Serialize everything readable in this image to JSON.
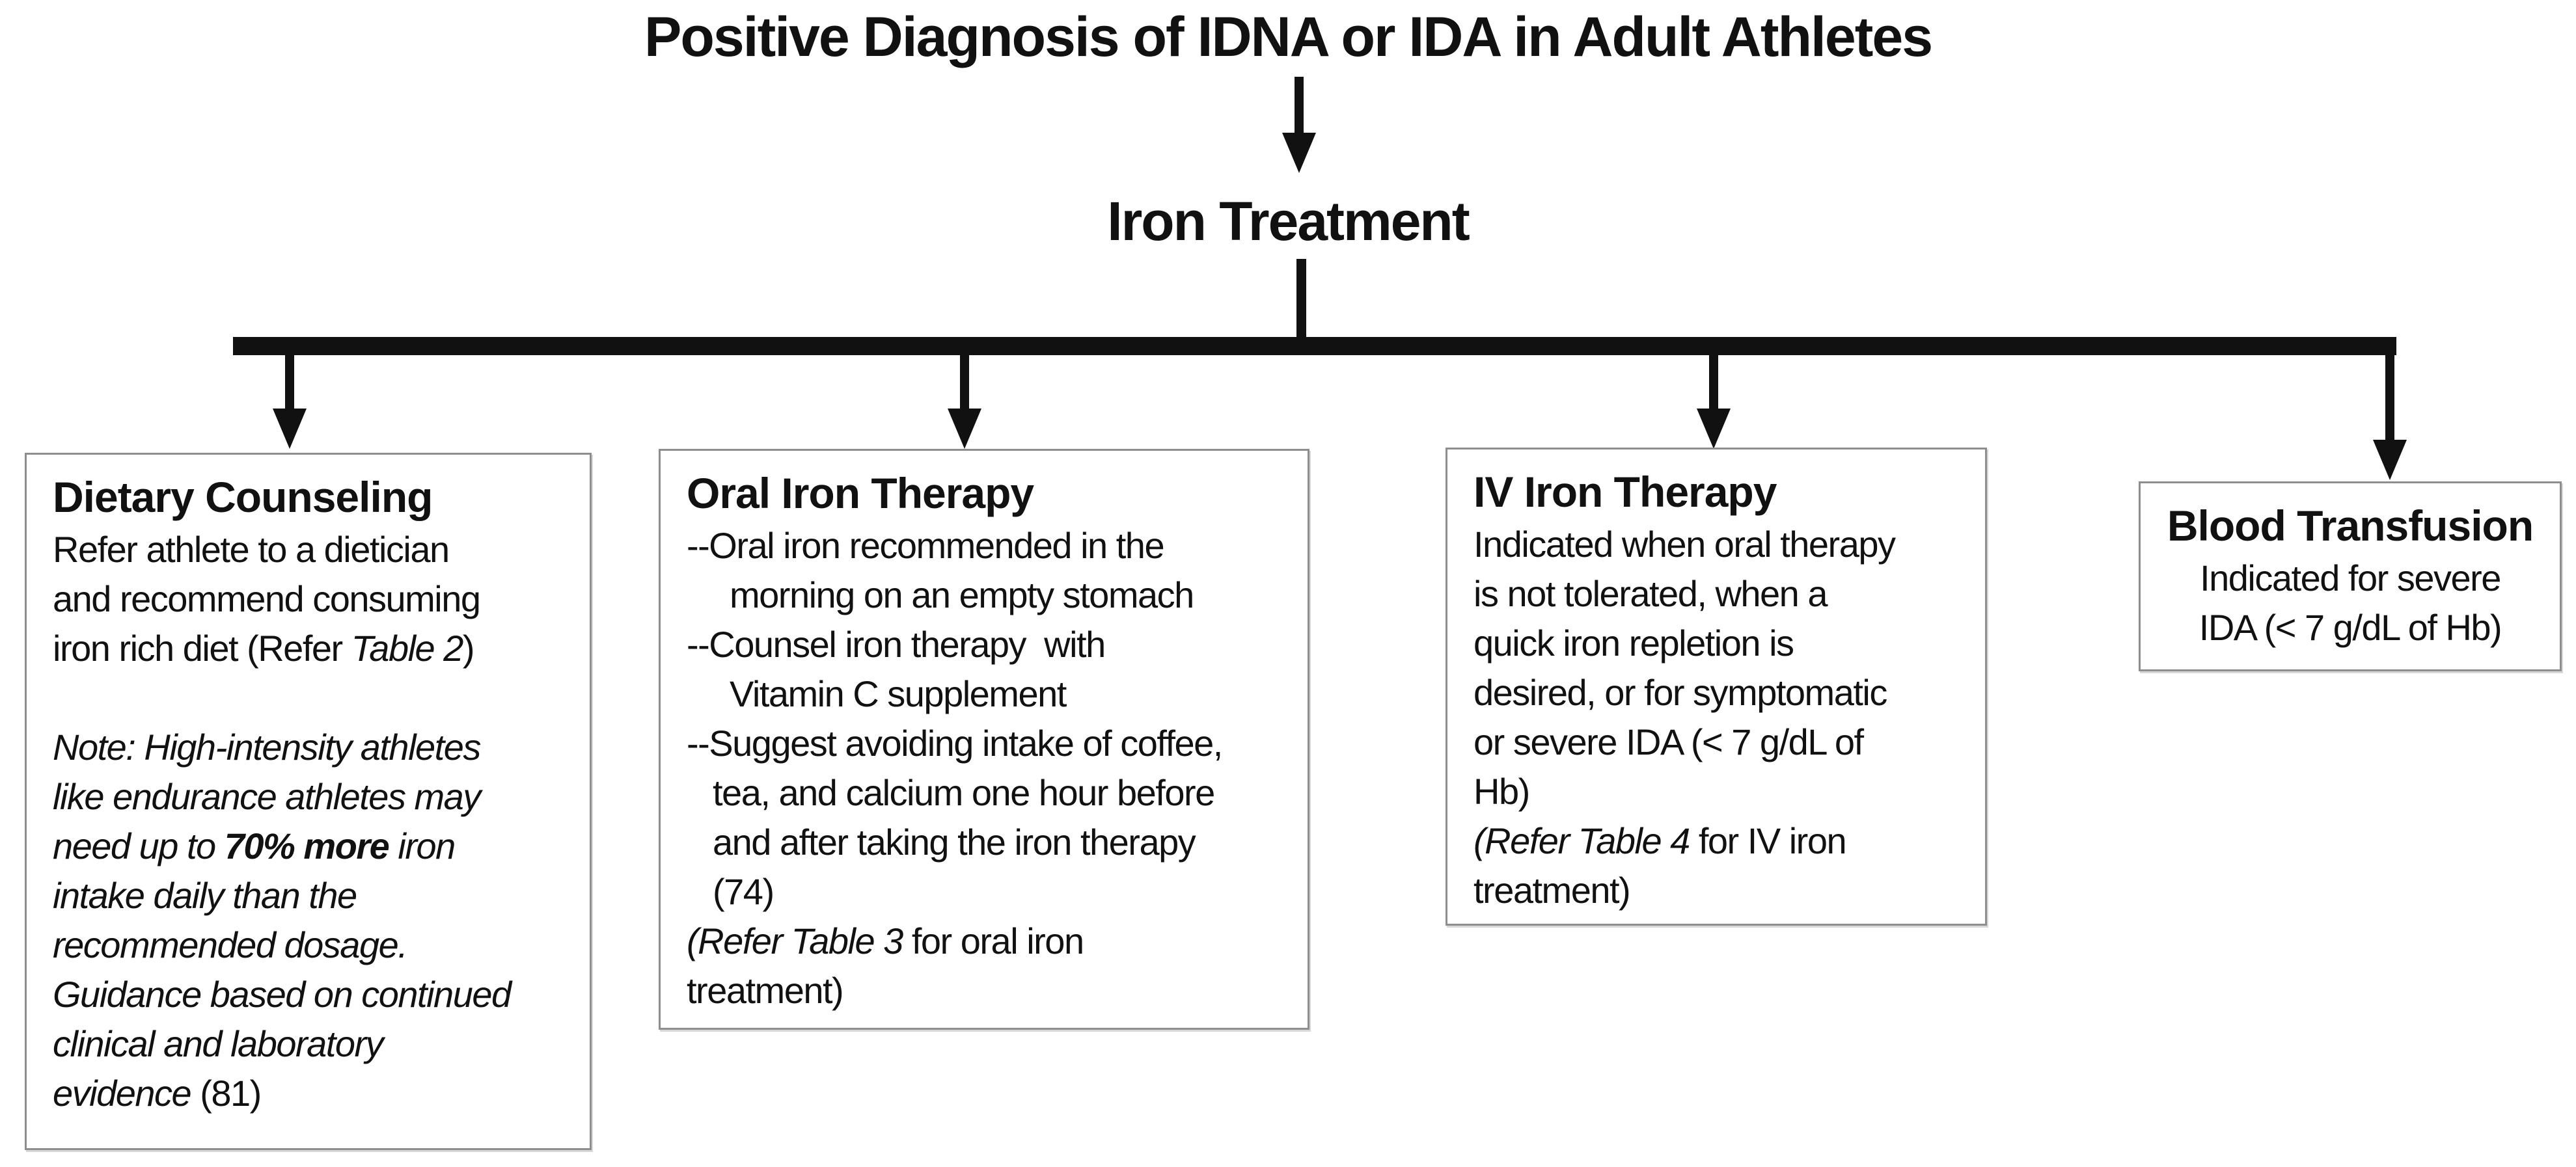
{
  "title": "Positive Diagnosis of IDNA or IDA in Adult Athletes",
  "root_node_label": "Iron Treatment",
  "colors": {
    "background": "#ffffff",
    "text": "#111111",
    "connector_line": "#111111",
    "box_border": "#8e8e8e"
  },
  "boxes": [
    {
      "id": "dietary-counseling",
      "title": "Dietary Counseling",
      "lines": [
        {
          "segments": [
            {
              "t": "Refer athlete to a dietician"
            }
          ]
        },
        {
          "segments": [
            {
              "t": "and recommend consuming"
            }
          ]
        },
        {
          "segments": [
            {
              "t": "iron rich diet (Refer "
            },
            {
              "t": "Table 2",
              "i": true
            },
            {
              "t": ")"
            }
          ]
        },
        {
          "blank": true
        },
        {
          "segments": [
            {
              "t": "Note: High-intensity athletes",
              "i": true
            }
          ]
        },
        {
          "segments": [
            {
              "t": "like endurance athletes may",
              "i": true
            }
          ]
        },
        {
          "segments": [
            {
              "t": "need up to ",
              "i": true
            },
            {
              "t": "70% more",
              "i": true,
              "b": true
            },
            {
              "t": " iron",
              "i": true
            }
          ]
        },
        {
          "segments": [
            {
              "t": "intake daily than the",
              "i": true
            }
          ]
        },
        {
          "segments": [
            {
              "t": "recommended dosage.",
              "i": true
            }
          ]
        },
        {
          "segments": [
            {
              "t": "Guidance based on continued",
              "i": true
            }
          ]
        },
        {
          "segments": [
            {
              "t": "clinical and laboratory",
              "i": true
            }
          ]
        },
        {
          "segments": [
            {
              "t": "evidence",
              "i": true
            },
            {
              "t": " (81)"
            }
          ]
        }
      ]
    },
    {
      "id": "oral-iron-therapy",
      "title": "Oral Iron Therapy",
      "lines": [
        {
          "segments": [
            {
              "t": "--Oral iron recommended in the"
            }
          ]
        },
        {
          "indent": 2,
          "segments": [
            {
              "t": "morning on an empty stomach"
            }
          ]
        },
        {
          "segments": [
            {
              "t": "--Counsel iron therapy  with"
            }
          ]
        },
        {
          "indent": 2,
          "segments": [
            {
              "t": "Vitamin C supplement"
            }
          ]
        },
        {
          "segments": [
            {
              "t": "--Suggest avoiding intake of coffee,"
            }
          ]
        },
        {
          "indent": 1,
          "segments": [
            {
              "t": "tea, and calcium one hour before"
            }
          ]
        },
        {
          "indent": 1,
          "segments": [
            {
              "t": "and after taking the iron therapy"
            }
          ]
        },
        {
          "indent": 1,
          "segments": [
            {
              "t": "(74)"
            }
          ]
        },
        {
          "segments": [
            {
              "t": "(Refer Table 3",
              "i": true
            },
            {
              "t": " for oral iron"
            }
          ]
        },
        {
          "segments": [
            {
              "t": "treatment)"
            }
          ]
        }
      ]
    },
    {
      "id": "iv-iron-therapy",
      "title": "IV Iron Therapy",
      "lines": [
        {
          "segments": [
            {
              "t": "Indicated when oral therapy"
            }
          ]
        },
        {
          "segments": [
            {
              "t": "is not tolerated, when a"
            }
          ]
        },
        {
          "segments": [
            {
              "t": "quick iron repletion is"
            }
          ]
        },
        {
          "segments": [
            {
              "t": "desired, or for symptomatic"
            }
          ]
        },
        {
          "segments": [
            {
              "t": "or severe IDA (< 7 g/dL of"
            }
          ]
        },
        {
          "segments": [
            {
              "t": "Hb)"
            }
          ]
        },
        {
          "segments": [
            {
              "t": "(Refer Table 4",
              "i": true
            },
            {
              "t": " for IV iron"
            }
          ]
        },
        {
          "segments": [
            {
              "t": "treatment)"
            }
          ]
        }
      ]
    },
    {
      "id": "blood-transfusion",
      "title": "Blood Transfusion",
      "lines": [
        {
          "segments": [
            {
              "t": "Indicated for severe"
            }
          ]
        },
        {
          "segments": [
            {
              "t": "IDA (< 7 g/dL of Hb)"
            }
          ]
        }
      ]
    }
  ]
}
